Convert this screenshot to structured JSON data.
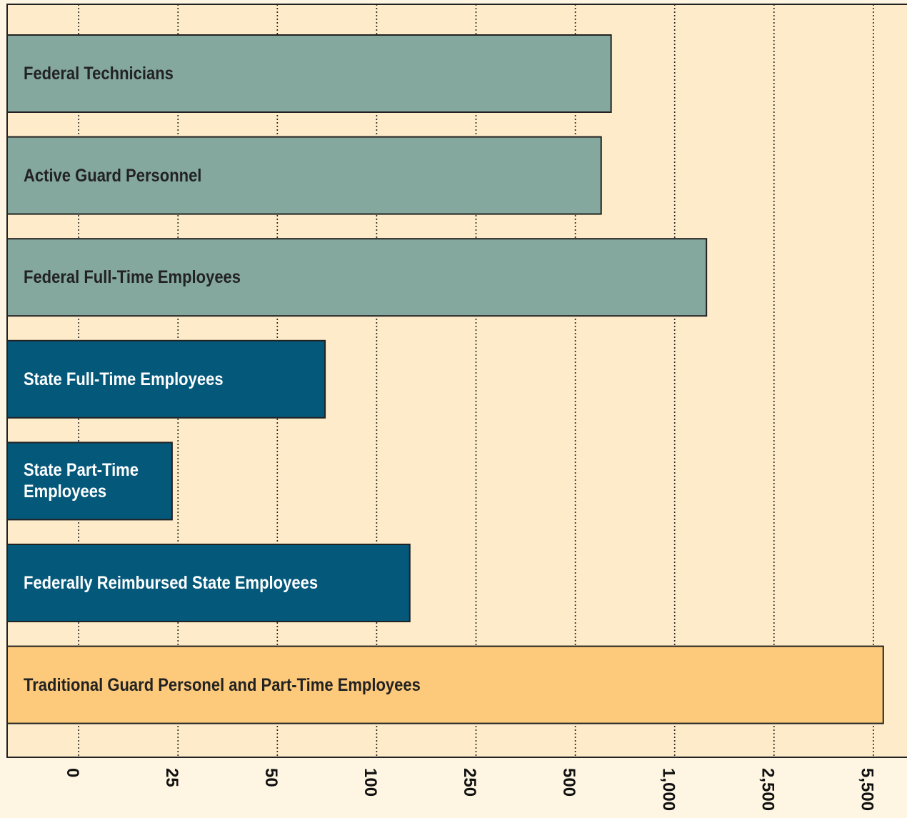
{
  "chart_data": {
    "type": "bar",
    "orientation": "horizontal",
    "xscale": "piecewise",
    "categories": [
      "Federal Technicians",
      "Active Guard Personnel",
      "Federal Full-Time Employees",
      "State Full-Time Employees",
      "State Part-Time Employees",
      "Federally Reimbursed State Employees",
      "Traditional Guard Personel and Part-Time Employees"
    ],
    "values": [
      680,
      630,
      1480,
      74,
      23.5,
      150,
      5800
    ],
    "colors": [
      "#84a89e",
      "#84a89e",
      "#84a89e",
      "#04587a",
      "#04587a",
      "#04587a",
      "#fdc97a"
    ],
    "label_colors": [
      "#222222",
      "#222222",
      "#222222",
      "#ffffff",
      "#ffffff",
      "#ffffff",
      "#222222"
    ],
    "xlim": [
      -18,
      6560
    ],
    "xticks": [
      0,
      25,
      50,
      100,
      250,
      500,
      {
        "value": 1000,
        "label": "1,000"
      },
      {
        "value": 2500,
        "label": "2,500"
      },
      {
        "value": 5500,
        "label": "5,500"
      }
    ],
    "grid": true
  }
}
